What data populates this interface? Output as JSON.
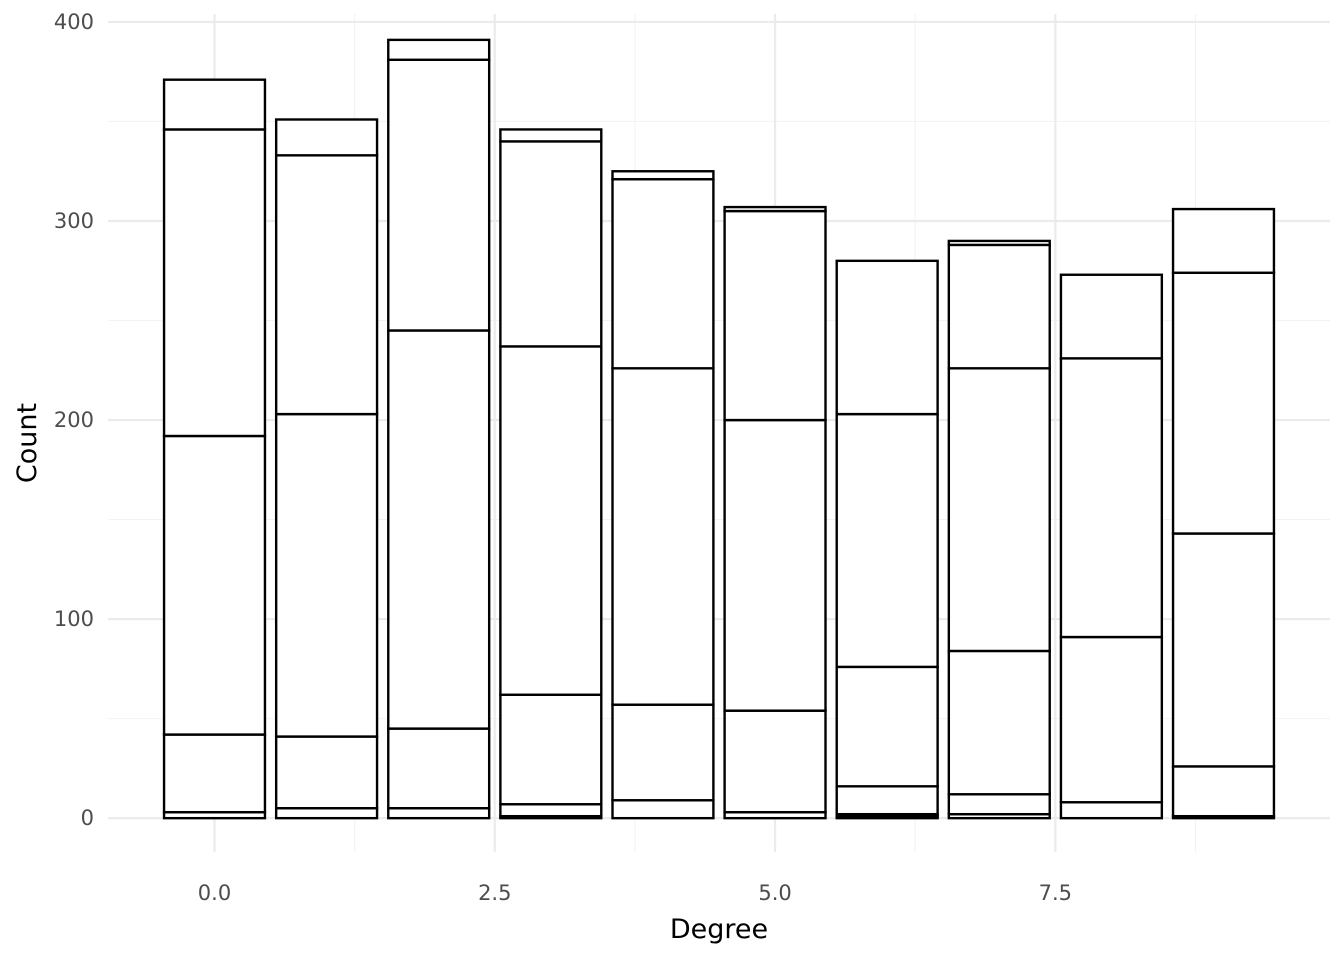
{
  "chart_data": {
    "type": "bar",
    "stacked": true,
    "xlabel": "Degree",
    "ylabel": "Count",
    "xlim": [
      -0.95,
      9.95
    ],
    "ylim": [
      -17,
      404
    ],
    "x_ticks": [
      "0.0",
      "2.5",
      "5.0",
      "7.5"
    ],
    "x_tick_values": [
      0,
      2.5,
      5,
      7.5
    ],
    "y_ticks": [
      "0",
      "100",
      "200",
      "300",
      "400"
    ],
    "y_tick_values": [
      0,
      100,
      200,
      300,
      400
    ],
    "grid": true,
    "legend": "none",
    "bar_fill": "#ffffff",
    "bar_outline": "#000000",
    "bars": [
      {
        "x": 0,
        "boundaries": [
          0,
          3,
          42,
          192,
          346,
          371
        ]
      },
      {
        "x": 1,
        "boundaries": [
          0,
          5,
          41,
          203,
          333,
          351
        ]
      },
      {
        "x": 2,
        "boundaries": [
          0,
          5,
          45,
          245,
          381,
          391
        ]
      },
      {
        "x": 3,
        "boundaries": [
          0,
          1,
          7,
          62,
          237,
          340,
          346
        ]
      },
      {
        "x": 4,
        "boundaries": [
          0,
          9,
          57,
          226,
          321,
          325
        ]
      },
      {
        "x": 5,
        "boundaries": [
          0,
          3,
          54,
          200,
          305,
          307
        ]
      },
      {
        "x": 6,
        "boundaries": [
          0,
          1,
          2,
          16,
          76,
          203,
          280
        ]
      },
      {
        "x": 7,
        "boundaries": [
          0,
          2,
          12,
          84,
          226,
          288,
          290
        ]
      },
      {
        "x": 8,
        "boundaries": [
          0,
          8,
          91,
          231,
          273
        ]
      },
      {
        "x": 9,
        "boundaries": [
          0,
          1,
          26,
          143,
          274,
          306
        ]
      }
    ]
  }
}
